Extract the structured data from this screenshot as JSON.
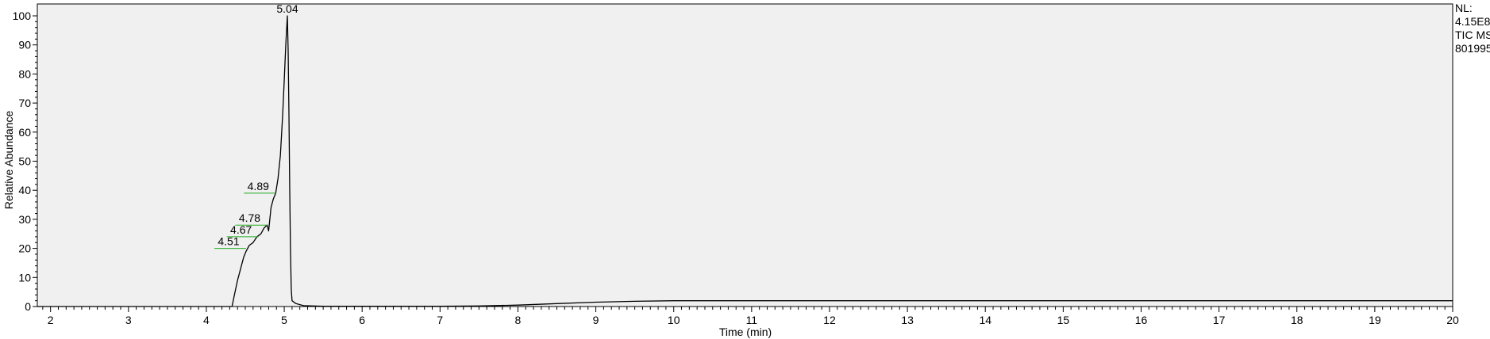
{
  "chart_data": {
    "type": "line",
    "xlabel": "Time (min)",
    "ylabel": "Relative Abundance",
    "xlim": [
      1.83,
      20.0
    ],
    "ylim": [
      0,
      100
    ],
    "x_ticks": [
      2,
      3,
      4,
      5,
      6,
      7,
      8,
      9,
      10,
      11,
      12,
      13,
      14,
      15,
      16,
      17,
      18,
      19,
      20
    ],
    "y_ticks": [
      0,
      10,
      20,
      30,
      40,
      50,
      60,
      70,
      80,
      90,
      100
    ],
    "grid": false,
    "colors": {
      "background": "#f0f0f0",
      "trace": "#000000",
      "peak_marker": "#22aa22"
    },
    "info": [
      "NL:",
      "4.15E8",
      "TIC MS",
      "801995"
    ],
    "peaks": [
      {
        "label": "5.04",
        "x": 5.04,
        "y": 100
      },
      {
        "label": "4.89",
        "x": 4.89,
        "y": 39
      },
      {
        "label": "4.78",
        "x": 4.78,
        "y": 28
      },
      {
        "label": "4.67",
        "x": 4.67,
        "y": 24
      },
      {
        "label": "4.51",
        "x": 4.51,
        "y": 20
      }
    ],
    "series": [
      {
        "x": [
          1.83,
          4.33,
          4.36,
          4.4,
          4.44,
          4.48,
          4.51,
          4.55,
          4.6,
          4.65,
          4.7,
          4.74,
          4.78,
          4.8,
          4.83,
          4.86,
          4.89,
          4.92,
          4.95,
          4.98,
          5.0,
          5.02,
          5.04,
          5.05,
          5.06,
          5.07,
          5.08,
          5.09,
          5.1,
          5.15,
          5.25,
          5.5,
          6.0,
          6.5,
          7.0,
          7.5,
          8.0,
          8.5,
          9.0,
          9.5,
          10.0,
          11,
          12,
          13,
          14,
          15,
          16,
          17,
          18,
          19,
          20.0
        ],
        "y": [
          0,
          0,
          4,
          9,
          13,
          17,
          19,
          21,
          22,
          24,
          25,
          27,
          28,
          26,
          34,
          37,
          39,
          44,
          52,
          66,
          78,
          90,
          100,
          88,
          66,
          42,
          20,
          6,
          2,
          1,
          0.3,
          0.1,
          0.1,
          0.1,
          0.1,
          0.2,
          0.5,
          1.0,
          1.5,
          1.8,
          2.0,
          2.0,
          2.0,
          2.0,
          2.0,
          2.0,
          2.0,
          2.0,
          2.0,
          2.0,
          2.0
        ]
      }
    ]
  }
}
